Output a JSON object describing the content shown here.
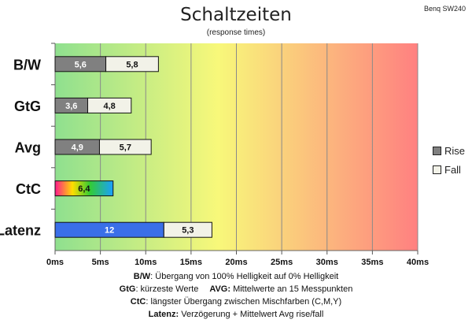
{
  "title": "Schaltzeiten",
  "subtitle": "(response times)",
  "corner_label": "Benq SW240",
  "legend": [
    {
      "label": "Rise",
      "color": "#808080"
    },
    {
      "label": "Fall",
      "color": "#f2f2e8"
    }
  ],
  "notes": {
    "bw_key": "B/W",
    "bw_text": ":  Übergang von 100% Helligkeit auf 0% Helligkeit",
    "gtg_key": "GtG",
    "gtg_text": ": kürzeste  Werte",
    "avg_key": "AVG:",
    "avg_text": " Mittelwerte  an 15 Messpunkten",
    "ctc_key": "CtC",
    "ctc_text": ": längster Übergang  zwischen Mischfarben  (C,M,Y)",
    "lat_key": "Latenz:",
    "lat_text": " Verzögerung  + Mittelwert Avg rise/fall"
  },
  "colors": {
    "rise": "#808080",
    "fall": "#f2f2e8",
    "latency": "#3a6fe8",
    "background_gradient": [
      "#8fe08f",
      "#f8f87a",
      "#ff8080"
    ]
  },
  "chart_data": {
    "type": "bar",
    "orientation": "horizontal",
    "stacked": true,
    "unit": "ms",
    "xlim": [
      0,
      40
    ],
    "xticks": [
      "0ms",
      "5ms",
      "10ms",
      "15ms",
      "20ms",
      "25ms",
      "30ms",
      "35ms",
      "40ms"
    ],
    "categories": [
      "B/W",
      "GtG",
      "Avg",
      "CtC",
      "Latenz"
    ],
    "series": [
      {
        "name": "Rise",
        "values": [
          5.6,
          3.6,
          4.9,
          6.4,
          12
        ],
        "labels": [
          "5,6",
          "3,6",
          "4,9",
          "6,4",
          "12"
        ]
      },
      {
        "name": "Fall",
        "values": [
          5.8,
          4.8,
          5.7,
          null,
          5.3
        ],
        "labels": [
          "5,8",
          "4,8",
          "5,7",
          "",
          "5,3"
        ]
      }
    ],
    "grid": true,
    "legend_position": "right"
  }
}
